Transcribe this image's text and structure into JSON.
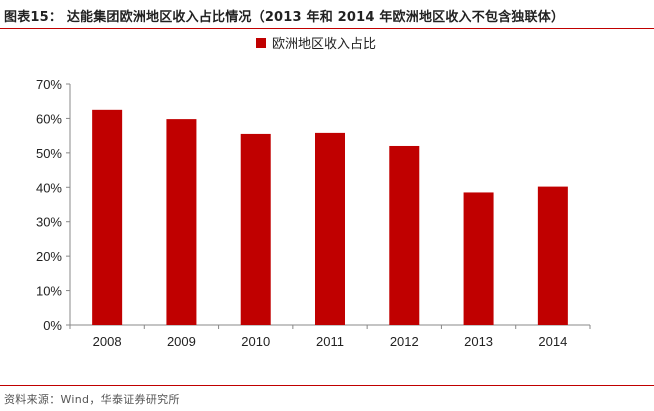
{
  "figure": {
    "title": "图表15：  达能集团欧洲地区收入占比情况（2013 年和 2014 年欧洲地区收入不包含独联体）",
    "source": "资料来源：Wind，华泰证券研究所"
  },
  "chart_data": {
    "type": "bar",
    "categories": [
      "2008",
      "2009",
      "2010",
      "2011",
      "2012",
      "2013",
      "2014"
    ],
    "series": [
      {
        "name": "欧洲地区收入占比",
        "values": [
          62.5,
          59.8,
          55.5,
          55.8,
          52.0,
          38.5,
          40.2
        ]
      }
    ],
    "ylim": [
      0,
      70
    ],
    "yticks": [
      "0%",
      "10%",
      "20%",
      "30%",
      "40%",
      "50%",
      "60%",
      "70%"
    ],
    "legend": "top-center",
    "grid": false,
    "colors": {
      "bar": "#c00000",
      "axis": "#888888"
    }
  }
}
